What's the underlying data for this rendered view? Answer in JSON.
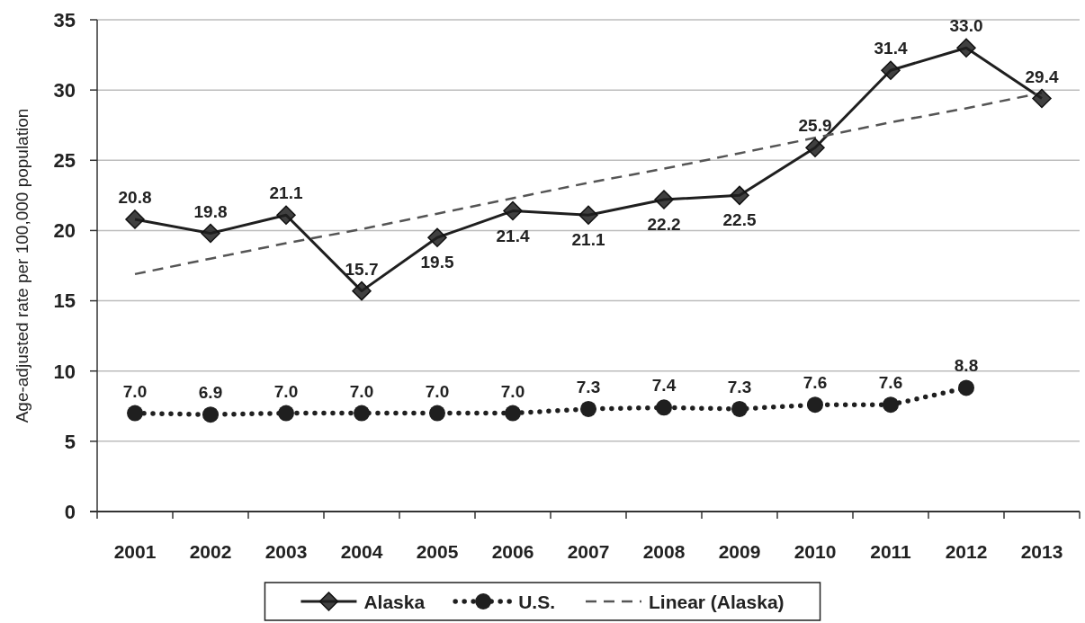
{
  "chart_data": {
    "type": "line",
    "ylabel": "Age-adjusted rate per 100,000 population",
    "categories": [
      "2001",
      "2002",
      "2003",
      "2004",
      "2005",
      "2006",
      "2007",
      "2008",
      "2009",
      "2010",
      "2011",
      "2012",
      "2013"
    ],
    "series": [
      {
        "name": "Alaska",
        "color": "#1f1f1f",
        "marker": "diamond",
        "line_style": "solid",
        "values": [
          20.8,
          19.8,
          21.1,
          15.7,
          19.5,
          21.4,
          21.1,
          22.2,
          22.5,
          25.9,
          31.4,
          33.0,
          29.4
        ],
        "value_labels": [
          "20.8",
          "19.8",
          "21.1",
          "15.7",
          "19.5",
          "21.4",
          "21.1",
          "22.2",
          "22.5",
          "25.9",
          "31.4",
          "33.0",
          "29.4"
        ]
      },
      {
        "name": "U.S.",
        "color": "#1f1f1f",
        "marker": "circle",
        "line_style": "dotted",
        "values": [
          7.0,
          6.9,
          7.0,
          7.0,
          7.0,
          7.0,
          7.3,
          7.4,
          7.3,
          7.6,
          7.6,
          8.8,
          null
        ],
        "value_labels": [
          "7.0",
          "6.9",
          "7.0",
          "7.0",
          "7.0",
          "7.0",
          "7.3",
          "7.4",
          "7.3",
          "7.6",
          "7.6",
          "8.8",
          null
        ]
      },
      {
        "name": "Linear (Alaska)",
        "type": "line",
        "color": "#555555",
        "marker": "none",
        "line_style": "dashed",
        "values": [
          16.9,
          18.0,
          19.1,
          20.1,
          21.2,
          22.3,
          23.4,
          24.4,
          25.5,
          26.6,
          27.7,
          28.7,
          29.8
        ]
      }
    ],
    "ylim": [
      0,
      35
    ],
    "yticks": [
      0,
      5,
      10,
      15,
      20,
      25,
      30,
      35
    ],
    "grid": "y",
    "legend": "bottom"
  }
}
